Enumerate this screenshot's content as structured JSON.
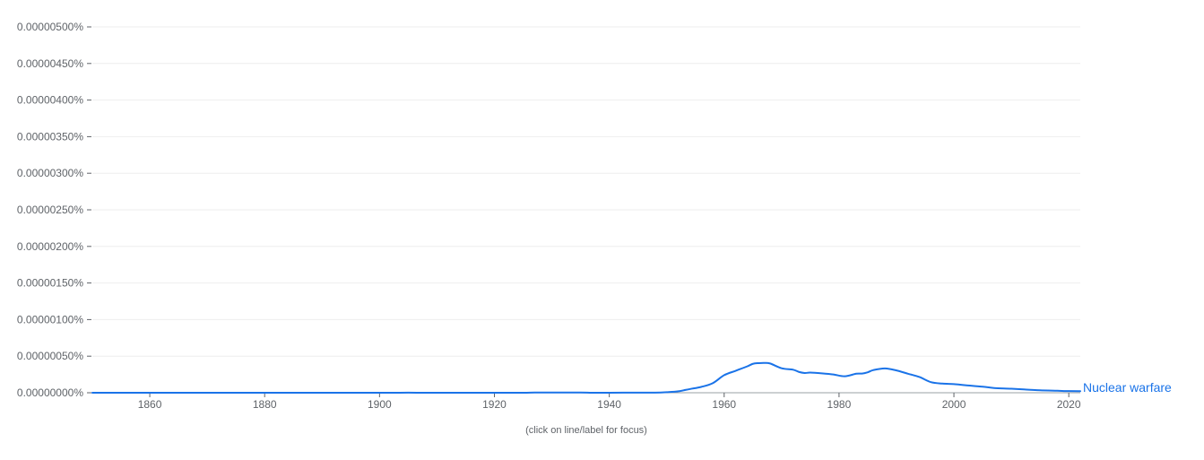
{
  "chart_data": {
    "type": "line",
    "x": [
      1850,
      1860,
      1870,
      1880,
      1890,
      1900,
      1905,
      1910,
      1920,
      1925,
      1927,
      1930,
      1935,
      1937,
      1940,
      1945,
      1948,
      1950,
      1952,
      1954,
      1956,
      1958,
      1960,
      1962,
      1964,
      1965,
      1966,
      1967,
      1968,
      1970,
      1972,
      1973,
      1974,
      1975,
      1977,
      1979,
      1981,
      1983,
      1984,
      1985,
      1986,
      1988,
      1990,
      1992,
      1994,
      1996,
      1998,
      2000,
      2002,
      2005,
      2007,
      2010,
      2013,
      2015,
      2018,
      2020,
      2022
    ],
    "series": [
      {
        "name": "Nuclear warfare",
        "color": "#1a73e8",
        "values": [
          0.0,
          0.0,
          0.0,
          0.0,
          0.0,
          0.0,
          1e-09,
          0.0,
          0.0,
          0.0,
          3e-09,
          3e-09,
          3e-09,
          0.0,
          0.0,
          2e-09,
          2e-09,
          8e-09,
          2e-08,
          5e-08,
          8e-08,
          1.3e-07,
          2.4e-07,
          3e-07,
          3.6e-07,
          3.95e-07,
          4.05e-07,
          4.08e-07,
          4e-07,
          3.35e-07,
          3.15e-07,
          2.85e-07,
          2.7e-07,
          2.75e-07,
          2.65e-07,
          2.5e-07,
          2.25e-07,
          2.6e-07,
          2.62e-07,
          2.8e-07,
          3.1e-07,
          3.33e-07,
          3.05e-07,
          2.6e-07,
          2.15e-07,
          1.45e-07,
          1.25e-07,
          1.18e-07,
          1.03e-07,
          8.3e-08,
          6.5e-08,
          5.5e-08,
          4.2e-08,
          3.3e-08,
          2.7e-08,
          2.3e-08,
          2.2e-08
        ]
      }
    ],
    "y_tick_labels": [
      "0.00000000%",
      "0.00000050%",
      "0.00000100%",
      "0.00000150%",
      "0.00000200%",
      "0.00000250%",
      "0.00000300%",
      "0.00000350%",
      "0.00000400%",
      "0.00000450%",
      "0.00000500%"
    ],
    "y_ticks": [
      0,
      5e-07,
      1e-06,
      1.5e-06,
      2e-06,
      2.5e-06,
      3e-06,
      3.5e-06,
      4e-06,
      4.5e-06,
      5e-06
    ],
    "x_tick_labels": [
      "1860",
      "1880",
      "1900",
      "1920",
      "1940",
      "1960",
      "1980",
      "2000",
      "2020"
    ],
    "x_ticks": [
      1860,
      1880,
      1900,
      1920,
      1940,
      1960,
      1980,
      2000,
      2020
    ],
    "xlim": [
      1850,
      2022
    ],
    "ylim": [
      0,
      5e-06
    ],
    "grid": true,
    "legend": "end-of-line",
    "title": "",
    "xlabel": "",
    "ylabel": ""
  },
  "hint": "(click on line/label for focus)"
}
